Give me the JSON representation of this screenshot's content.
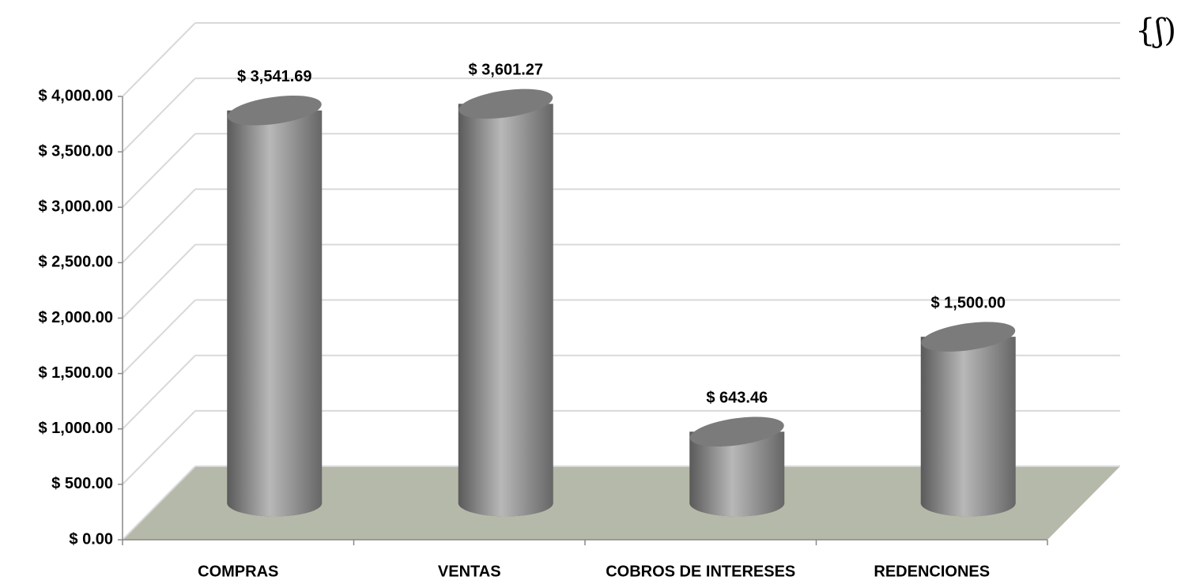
{
  "chart_data": {
    "type": "bar3d",
    "annotation": "{ʃ)",
    "categories": [
      "COMPRAS",
      "VENTAS",
      "COBROS DE INTERESES",
      "REDENCIONES"
    ],
    "values": [
      3541.69,
      3601.27,
      643.46,
      1500.0
    ],
    "value_labels": [
      "$ 3,541.69",
      "$ 3,601.27",
      "$ 643.46",
      "$ 1,500.00"
    ],
    "color": "#9a9a9a",
    "floor_color": "#b5b9a9",
    "ylim": [
      0,
      4000
    ],
    "yticks": [
      {
        "value": 0,
        "label": "$ 0.00"
      },
      {
        "value": 500,
        "label": "$ 500.00"
      },
      {
        "value": 1000,
        "label": "$ 1,000.00"
      },
      {
        "value": 1500,
        "label": "$ 1,500.00"
      },
      {
        "value": 2000,
        "label": "$ 2,000.00"
      },
      {
        "value": 2500,
        "label": "$ 2,500.00"
      },
      {
        "value": 3000,
        "label": "$ 3,000.00"
      },
      {
        "value": 3500,
        "label": "$ 3,500.00"
      },
      {
        "value": 4000,
        "label": "$ 4,000.00"
      }
    ],
    "grid": true
  }
}
